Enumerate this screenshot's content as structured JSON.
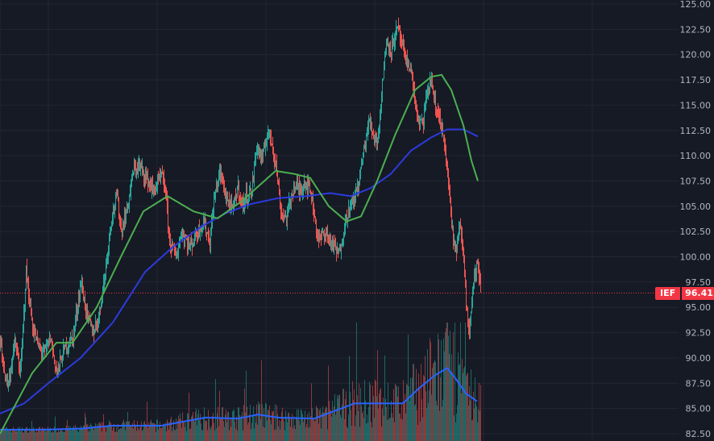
{
  "colors": {
    "background": "#161a25",
    "grid": "#232733",
    "up": "#26a69a",
    "down": "#ef5350",
    "ma_fast": "#4caf50",
    "ma_slow": "#2c3bdc",
    "volume_ma": "#2962ff",
    "last_price": "#f23645",
    "axis_text": "#b2b5be"
  },
  "badge": {
    "symbol": "IEF",
    "price": "96.41"
  },
  "chart_data": {
    "type": "candlestick",
    "ylim": [
      82.5,
      125.0
    ],
    "y_ticks": [
      "125.00",
      "122.50",
      "120.00",
      "117.50",
      "115.00",
      "112.50",
      "110.00",
      "107.50",
      "105.00",
      "102.50",
      "100.00",
      "97.50",
      "95.00",
      "92.50",
      "90.00",
      "87.50",
      "85.00",
      "82.50"
    ],
    "last_price": 96.41,
    "price_keypoints": [
      [
        0,
        91.5
      ],
      [
        5,
        88.5
      ],
      [
        10,
        87.5
      ],
      [
        18,
        91.5
      ],
      [
        25,
        88.5
      ],
      [
        32,
        98.5
      ],
      [
        40,
        93.0
      ],
      [
        48,
        91.0
      ],
      [
        55,
        90.5
      ],
      [
        62,
        92.0
      ],
      [
        70,
        88.5
      ],
      [
        80,
        91.0
      ],
      [
        90,
        92.0
      ],
      [
        100,
        97.5
      ],
      [
        108,
        94.0
      ],
      [
        115,
        92.5
      ],
      [
        122,
        94.0
      ],
      [
        130,
        98.5
      ],
      [
        138,
        104.0
      ],
      [
        145,
        106.0
      ],
      [
        150,
        102.5
      ],
      [
        158,
        105.0
      ],
      [
        165,
        108.5
      ],
      [
        172,
        109.0
      ],
      [
        180,
        108.0
      ],
      [
        190,
        106.5
      ],
      [
        200,
        108.0
      ],
      [
        205,
        106.5
      ],
      [
        210,
        101.5
      ],
      [
        218,
        100.0
      ],
      [
        225,
        102.5
      ],
      [
        235,
        101.0
      ],
      [
        245,
        102.5
      ],
      [
        252,
        103.5
      ],
      [
        260,
        101.5
      ],
      [
        265,
        105.5
      ],
      [
        272,
        108.5
      ],
      [
        280,
        106.0
      ],
      [
        288,
        104.5
      ],
      [
        295,
        107.0
      ],
      [
        300,
        105.0
      ],
      [
        305,
        106.0
      ],
      [
        312,
        106.5
      ],
      [
        318,
        111.0
      ],
      [
        325,
        109.5
      ],
      [
        332,
        112.5
      ],
      [
        338,
        111.0
      ],
      [
        343,
        108.5
      ],
      [
        348,
        104.5
      ],
      [
        355,
        103.8
      ],
      [
        362,
        106.5
      ],
      [
        368,
        107.0
      ],
      [
        372,
        106.5
      ],
      [
        378,
        107.5
      ],
      [
        385,
        106.5
      ],
      [
        390,
        104.0
      ],
      [
        395,
        101.5
      ],
      [
        402,
        102.5
      ],
      [
        410,
        101.5
      ],
      [
        420,
        100.2
      ],
      [
        430,
        104.2
      ],
      [
        438,
        105.5
      ],
      [
        445,
        107.5
      ],
      [
        452,
        111.0
      ],
      [
        458,
        113.5
      ],
      [
        463,
        112.0
      ],
      [
        468,
        111.5
      ],
      [
        472,
        115.0
      ],
      [
        476,
        119.0
      ],
      [
        480,
        121.5
      ],
      [
        485,
        120.5
      ],
      [
        490,
        122.0
      ],
      [
        494,
        122.5
      ],
      [
        498,
        121.0
      ],
      [
        502,
        119.5
      ],
      [
        508,
        119.0
      ],
      [
        512,
        117.0
      ],
      [
        516,
        114.5
      ],
      [
        520,
        113.0
      ],
      [
        525,
        113.5
      ],
      [
        530,
        116.5
      ],
      [
        535,
        117.5
      ],
      [
        540,
        114.5
      ],
      [
        545,
        114.0
      ],
      [
        550,
        111.5
      ],
      [
        556,
        107.5
      ],
      [
        560,
        103.0
      ],
      [
        565,
        100.5
      ],
      [
        570,
        103.0
      ],
      [
        575,
        100.0
      ],
      [
        578,
        95.5
      ],
      [
        582,
        93.0
      ],
      [
        587,
        97.5
      ],
      [
        592,
        99.5
      ],
      [
        596,
        96.4
      ]
    ],
    "ma_fast_keypoints": [
      [
        0,
        82.5
      ],
      [
        40,
        88.5
      ],
      [
        70,
        91.5
      ],
      [
        90,
        91.5
      ],
      [
        120,
        95.0
      ],
      [
        150,
        100.0
      ],
      [
        178,
        104.5
      ],
      [
        208,
        106.0
      ],
      [
        240,
        104.5
      ],
      [
        270,
        103.8
      ],
      [
        300,
        105.5
      ],
      [
        342,
        108.5
      ],
      [
        365,
        108.2
      ],
      [
        385,
        107.8
      ],
      [
        408,
        105.0
      ],
      [
        430,
        103.5
      ],
      [
        448,
        104.0
      ],
      [
        468,
        107.5
      ],
      [
        490,
        112.0
      ],
      [
        515,
        116.5
      ],
      [
        535,
        117.8
      ],
      [
        548,
        118.0
      ],
      [
        560,
        116.5
      ],
      [
        575,
        113.0
      ],
      [
        585,
        109.5
      ],
      [
        593,
        107.5
      ]
    ],
    "ma_slow_keypoints": [
      [
        0,
        84.5
      ],
      [
        30,
        85.5
      ],
      [
        60,
        87.5
      ],
      [
        100,
        90.0
      ],
      [
        140,
        93.5
      ],
      [
        180,
        98.5
      ],
      [
        215,
        101.0
      ],
      [
        250,
        103.0
      ],
      [
        280,
        104.3
      ],
      [
        310,
        105.2
      ],
      [
        345,
        105.8
      ],
      [
        380,
        106.0
      ],
      [
        410,
        106.3
      ],
      [
        435,
        106.0
      ],
      [
        460,
        106.8
      ],
      [
        485,
        108.2
      ],
      [
        510,
        110.5
      ],
      [
        535,
        111.8
      ],
      [
        555,
        112.6
      ],
      [
        575,
        112.6
      ],
      [
        593,
        111.9
      ]
    ],
    "volume_ma_keypoints": [
      [
        0,
        82.9
      ],
      [
        50,
        82.9
      ],
      [
        100,
        83.0
      ],
      [
        140,
        83.3
      ],
      [
        200,
        83.3
      ],
      [
        255,
        84.1
      ],
      [
        295,
        84.0
      ],
      [
        320,
        84.4
      ],
      [
        345,
        84.1
      ],
      [
        390,
        84.0
      ],
      [
        420,
        84.9
      ],
      [
        440,
        85.5
      ],
      [
        470,
        85.5
      ],
      [
        500,
        85.5
      ],
      [
        520,
        87.0
      ],
      [
        540,
        88.3
      ],
      [
        555,
        89.0
      ],
      [
        565,
        88.0
      ],
      [
        578,
        86.5
      ],
      [
        592,
        85.7
      ]
    ]
  }
}
